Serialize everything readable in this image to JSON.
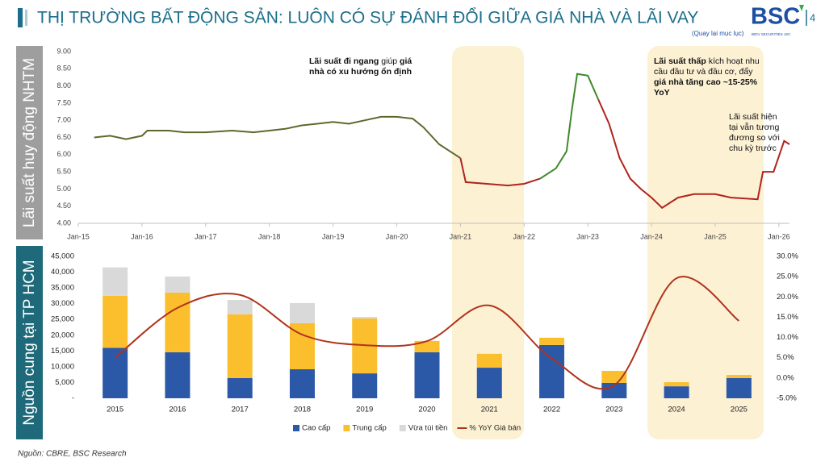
{
  "header": {
    "title": "THỊ TRƯỜNG BẤT ĐỘNG SẢN: LUÔN CÓ SỰ ĐÁNH ĐỔI GIỮA GIÁ NHÀ VÀ LÃI VAY",
    "logo": "BSC",
    "logo_subtitle": "BIDV SECURITIES JSC",
    "link": "(Quay lại mục lục)",
    "page_number": "4"
  },
  "side_labels": [
    "Lãi suất huy động NHTM",
    "Nguồn cung tại TP HCM"
  ],
  "chart_data": [
    {
      "type": "line",
      "xlim": [
        "2015-01",
        "2026-03"
      ],
      "xticks": [
        {
          "value": "2015-01",
          "label": "Jan-15"
        },
        {
          "value": "2016-01",
          "label": "Jan-16"
        },
        {
          "value": "2017-01",
          "label": "Jan-17"
        },
        {
          "value": "2018-01",
          "label": "Jan-18"
        },
        {
          "value": "2019-01",
          "label": "Jan-19"
        },
        {
          "value": "2020-01",
          "label": "Jan-20"
        },
        {
          "value": "2021-01",
          "label": "Jan-21"
        },
        {
          "value": "2022-01",
          "label": "Jan-22"
        },
        {
          "value": "2023-01",
          "label": "Jan-23"
        },
        {
          "value": "2024-01",
          "label": "Jan-24"
        },
        {
          "value": "2025-01",
          "label": "Jan-25"
        },
        {
          "value": "2026-01",
          "label": "Jan-26"
        }
      ],
      "ylim": [
        4,
        9
      ],
      "yticks": [
        {
          "value": 4,
          "label": "4.00"
        },
        {
          "value": 4.5,
          "label": "4.50"
        },
        {
          "value": 5,
          "label": "5.00"
        },
        {
          "value": 5.5,
          "label": "5.50"
        },
        {
          "value": 6,
          "label": "6.00"
        },
        {
          "value": 6.5,
          "label": "6.50"
        },
        {
          "value": 7,
          "label": "7.00"
        },
        {
          "value": 7.5,
          "label": "7.50"
        },
        {
          "value": 8,
          "label": "8.00"
        },
        {
          "value": 8.5,
          "label": "8.50"
        },
        {
          "value": 9,
          "label": "9.00"
        }
      ],
      "series": [
        {
          "color": "#5b6a2c",
          "x": [
            "2015-04",
            "2015-07",
            "2015-10",
            "2016-01",
            "2016-02",
            "2016-06",
            "2016-09",
            "2017-01",
            "2017-06",
            "2017-10",
            "2018-01",
            "2018-04",
            "2018-07",
            "2018-10",
            "2019-01",
            "2019-04",
            "2019-07",
            "2019-10",
            "2020-01",
            "2020-04",
            "2020-06",
            "2020-09",
            "2020-12",
            "2021-01"
          ],
          "values": [
            6.5,
            6.55,
            6.45,
            6.55,
            6.7,
            6.7,
            6.65,
            6.65,
            6.7,
            6.65,
            6.7,
            6.75,
            6.85,
            6.9,
            6.95,
            6.9,
            7.0,
            7.1,
            7.1,
            7.05,
            6.8,
            6.3,
            6.0,
            5.9
          ]
        },
        {
          "color": "#b0241c",
          "x": [
            "2021-01",
            "2021-02",
            "2021-06",
            "2021-10",
            "2022-01",
            "2022-04"
          ],
          "values": [
            5.9,
            5.2,
            5.15,
            5.1,
            5.15,
            5.3
          ]
        },
        {
          "color": "#3f8a2c",
          "x": [
            "2022-04",
            "2022-07",
            "2022-09",
            "2022-10",
            "2022-11",
            "2023-01",
            "2023-03"
          ],
          "values": [
            5.3,
            5.6,
            6.1,
            7.3,
            8.35,
            8.3,
            7.6
          ]
        },
        {
          "color": "#b0241c",
          "x": [
            "2023-03",
            "2023-05",
            "2023-07",
            "2023-09",
            "2023-11",
            "2024-01",
            "2024-03",
            "2024-06",
            "2024-09",
            "2025-01",
            "2025-04",
            "2025-09",
            "2025-10",
            "2025-12",
            "2026-02",
            "2026-03"
          ],
          "values": [
            7.6,
            6.9,
            5.9,
            5.3,
            5.0,
            4.75,
            4.45,
            4.75,
            4.85,
            4.85,
            4.75,
            4.7,
            5.5,
            5.5,
            6.4,
            6.3
          ]
        }
      ],
      "annotations": [
        [
          "Lãi suất đi ngang",
          "giúp",
          "giá nhà có xu hướng ổn định"
        ],
        [
          "Lãi suất thấp",
          "kích hoạt nhu cầu đầu tư và đầu cơ, đẩy",
          "giá nhà tăng cao ~15-25% YoY"
        ],
        [
          "Lãi suất hiện tại vẫn tương đương so với chu kỳ trước"
        ]
      ]
    },
    {
      "type": "bar",
      "stacked": true,
      "categories": [
        "2015",
        "2016",
        "2017",
        "2018",
        "2019",
        "2020",
        "2021",
        "2022",
        "2023",
        "2024",
        "2025"
      ],
      "ylim": [
        0,
        45000
      ],
      "yticks": [
        {
          "value": 0,
          "label": "-"
        },
        {
          "value": 5000,
          "label": "5,000"
        },
        {
          "value": 10000,
          "label": "10,000"
        },
        {
          "value": 15000,
          "label": "15,000"
        },
        {
          "value": 20000,
          "label": "20,000"
        },
        {
          "value": 25000,
          "label": "25,000"
        },
        {
          "value": 30000,
          "label": "30,000"
        },
        {
          "value": 35000,
          "label": "35,000"
        },
        {
          "value": 40000,
          "label": "40,000"
        },
        {
          "value": 45000,
          "label": "45,000"
        }
      ],
      "y2lim": [
        -5,
        30
      ],
      "y2ticks": [
        {
          "value": -5,
          "label": "-5.0%"
        },
        {
          "value": 0,
          "label": "0.0%"
        },
        {
          "value": 5,
          "label": "5.0%"
        },
        {
          "value": 10,
          "label": "10.0%"
        },
        {
          "value": 15,
          "label": "15.0%"
        },
        {
          "value": 20,
          "label": "20.0%"
        },
        {
          "value": 25,
          "label": "25.0%"
        },
        {
          "value": 30,
          "label": "30.0%"
        }
      ],
      "legend": "bottom",
      "series": [
        {
          "name": "Cao cấp",
          "color": "#2c58a8",
          "values": [
            16000,
            14600,
            6400,
            9200,
            7900,
            14600,
            9700,
            16900,
            4900,
            3800,
            6400
          ]
        },
        {
          "name": "Trung cấp",
          "color": "#fbbf2d",
          "values": [
            16500,
            18900,
            20200,
            14600,
            17400,
            3600,
            4400,
            2300,
            3800,
            1300,
            1000
          ]
        },
        {
          "name": "Vừa túi tiền",
          "color": "#d9d9d9",
          "values": [
            9000,
            5100,
            4600,
            6400,
            500,
            0,
            0,
            0,
            0,
            0,
            0
          ]
        },
        {
          "name": "% YoY Giá bán",
          "color": "#b0341c",
          "type": "line",
          "axis": "y2",
          "smooth": true,
          "values": [
            5.0,
            17.3,
            20.5,
            10.7,
            8.1,
            9.1,
            17.9,
            4.8,
            -1.8,
            24.6,
            14.1
          ]
        }
      ]
    }
  ],
  "source": "Nguồn: CBRE, BSC Research"
}
